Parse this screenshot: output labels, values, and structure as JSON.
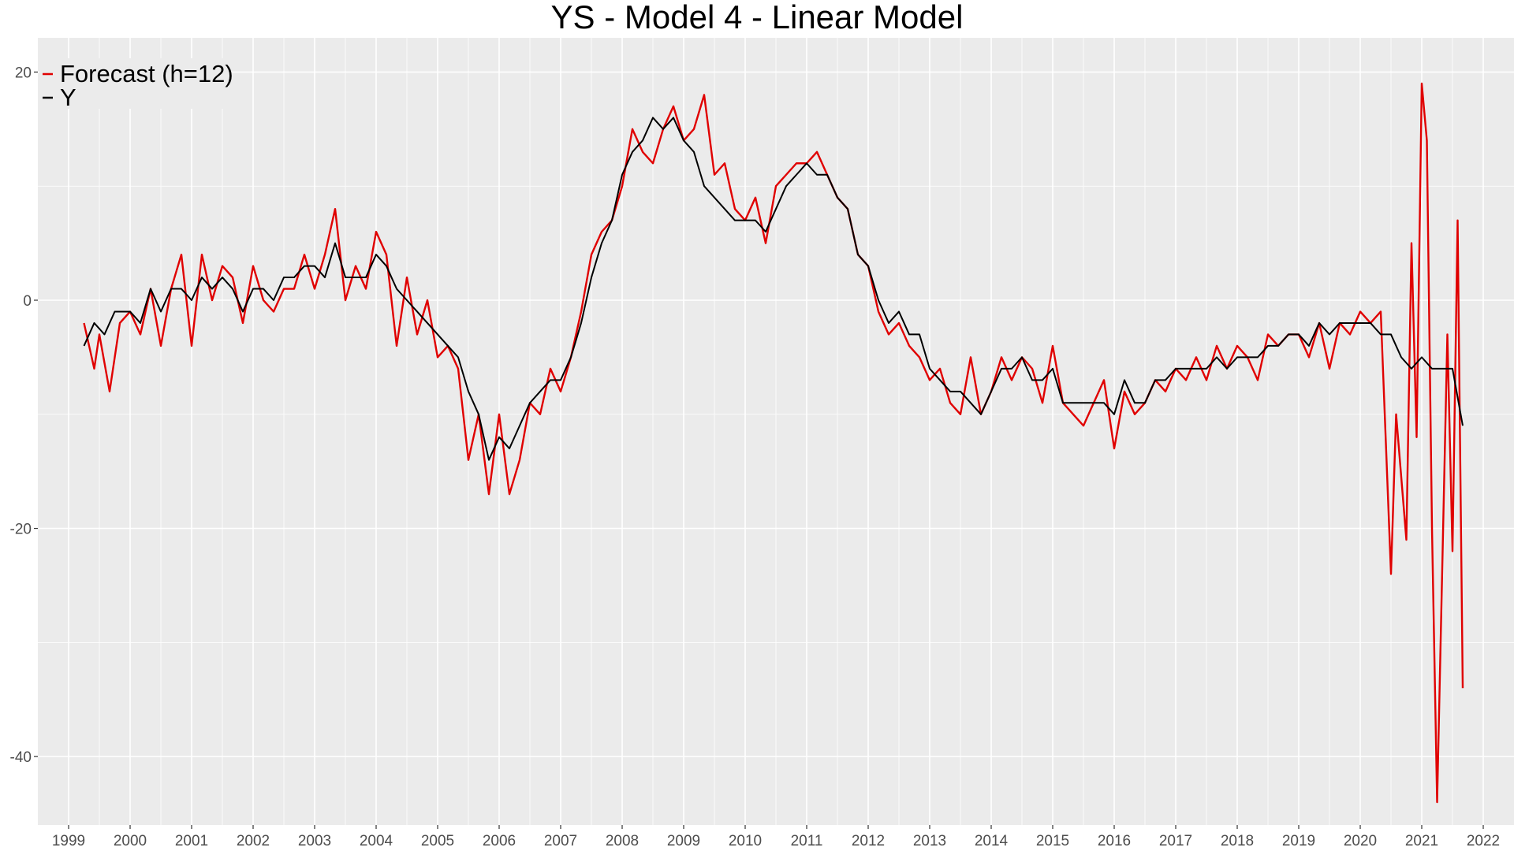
{
  "chart_data": {
    "type": "line",
    "title": "YS - Model 4 - Linear Model",
    "xlabel": "",
    "ylabel": "",
    "x_start": "1999-04",
    "x_end": "2021-06",
    "xlim": [
      "1998-07",
      "2022-07"
    ],
    "ylim": [
      -46,
      23
    ],
    "x_ticks": [
      "1999",
      "2000",
      "2001",
      "2002",
      "2003",
      "2004",
      "2005",
      "2006",
      "2007",
      "2008",
      "2009",
      "2010",
      "2011",
      "2012",
      "2013",
      "2014",
      "2015",
      "2016",
      "2017",
      "2018",
      "2019",
      "2020",
      "2021",
      "2022"
    ],
    "y_ticks": [
      20,
      0,
      -20,
      -40
    ],
    "y_tick_labels": [
      "20",
      "0",
      "-20",
      "-40"
    ],
    "grid": true,
    "legend_position": "top-left",
    "background": "#EBEBEB",
    "gridline_color": "#FFFFFF",
    "series": [
      {
        "name": "Forecast (h=12)",
        "color": "#E00000",
        "anchors": [
          [
            "1999-04",
            -2
          ],
          [
            "1999-06",
            -6
          ],
          [
            "1999-07",
            -3
          ],
          [
            "1999-09",
            -8
          ],
          [
            "1999-11",
            -2
          ],
          [
            "2000-01",
            -1
          ],
          [
            "2000-03",
            -3
          ],
          [
            "2000-05",
            1
          ],
          [
            "2000-07",
            -4
          ],
          [
            "2000-09",
            1
          ],
          [
            "2000-11",
            4
          ],
          [
            "2001-01",
            -4
          ],
          [
            "2001-03",
            4
          ],
          [
            "2001-05",
            0
          ],
          [
            "2001-07",
            3
          ],
          [
            "2001-09",
            2
          ],
          [
            "2001-11",
            -2
          ],
          [
            "2002-01",
            3
          ],
          [
            "2002-03",
            0
          ],
          [
            "2002-05",
            -1
          ],
          [
            "2002-07",
            1
          ],
          [
            "2002-09",
            1
          ],
          [
            "2002-11",
            4
          ],
          [
            "2003-01",
            1
          ],
          [
            "2003-03",
            4
          ],
          [
            "2003-05",
            8
          ],
          [
            "2003-07",
            0
          ],
          [
            "2003-09",
            3
          ],
          [
            "2003-11",
            1
          ],
          [
            "2004-01",
            6
          ],
          [
            "2004-03",
            4
          ],
          [
            "2004-05",
            -4
          ],
          [
            "2004-07",
            2
          ],
          [
            "2004-09",
            -3
          ],
          [
            "2004-11",
            0
          ],
          [
            "2005-01",
            -5
          ],
          [
            "2005-03",
            -4
          ],
          [
            "2005-05",
            -6
          ],
          [
            "2005-07",
            -14
          ],
          [
            "2005-09",
            -10
          ],
          [
            "2005-11",
            -17
          ],
          [
            "2006-01",
            -10
          ],
          [
            "2006-03",
            -17
          ],
          [
            "2006-05",
            -14
          ],
          [
            "2006-07",
            -9
          ],
          [
            "2006-09",
            -10
          ],
          [
            "2006-11",
            -6
          ],
          [
            "2007-01",
            -8
          ],
          [
            "2007-03",
            -5
          ],
          [
            "2007-05",
            -1
          ],
          [
            "2007-07",
            4
          ],
          [
            "2007-09",
            6
          ],
          [
            "2007-11",
            7
          ],
          [
            "2008-01",
            10
          ],
          [
            "2008-03",
            15
          ],
          [
            "2008-05",
            13
          ],
          [
            "2008-07",
            12
          ],
          [
            "2008-09",
            15
          ],
          [
            "2008-11",
            17
          ],
          [
            "2009-01",
            14
          ],
          [
            "2009-03",
            15
          ],
          [
            "2009-05",
            18
          ],
          [
            "2009-07",
            11
          ],
          [
            "2009-09",
            12
          ],
          [
            "2009-11",
            8
          ],
          [
            "2010-01",
            7
          ],
          [
            "2010-03",
            9
          ],
          [
            "2010-05",
            5
          ],
          [
            "2010-07",
            10
          ],
          [
            "2010-09",
            11
          ],
          [
            "2010-11",
            12
          ],
          [
            "2011-01",
            12
          ],
          [
            "2011-03",
            13
          ],
          [
            "2011-05",
            11
          ],
          [
            "2011-07",
            9
          ],
          [
            "2011-09",
            8
          ],
          [
            "2011-11",
            4
          ],
          [
            "2012-01",
            3
          ],
          [
            "2012-03",
            -1
          ],
          [
            "2012-05",
            -3
          ],
          [
            "2012-07",
            -2
          ],
          [
            "2012-09",
            -4
          ],
          [
            "2012-11",
            -5
          ],
          [
            "2013-01",
            -7
          ],
          [
            "2013-03",
            -6
          ],
          [
            "2013-05",
            -9
          ],
          [
            "2013-07",
            -10
          ],
          [
            "2013-09",
            -5
          ],
          [
            "2013-11",
            -10
          ],
          [
            "2014-01",
            -8
          ],
          [
            "2014-03",
            -5
          ],
          [
            "2014-05",
            -7
          ],
          [
            "2014-07",
            -5
          ],
          [
            "2014-09",
            -6
          ],
          [
            "2014-11",
            -9
          ],
          [
            "2015-01",
            -4
          ],
          [
            "2015-03",
            -9
          ],
          [
            "2015-05",
            -10
          ],
          [
            "2015-07",
            -11
          ],
          [
            "2015-09",
            -9
          ],
          [
            "2015-11",
            -7
          ],
          [
            "2016-01",
            -13
          ],
          [
            "2016-03",
            -8
          ],
          [
            "2016-05",
            -10
          ],
          [
            "2016-07",
            -9
          ],
          [
            "2016-09",
            -7
          ],
          [
            "2016-11",
            -8
          ],
          [
            "2017-01",
            -6
          ],
          [
            "2017-03",
            -7
          ],
          [
            "2017-05",
            -5
          ],
          [
            "2017-07",
            -7
          ],
          [
            "2017-09",
            -4
          ],
          [
            "2017-11",
            -6
          ],
          [
            "2018-01",
            -4
          ],
          [
            "2018-03",
            -5
          ],
          [
            "2018-05",
            -7
          ],
          [
            "2018-07",
            -3
          ],
          [
            "2018-09",
            -4
          ],
          [
            "2018-11",
            -3
          ],
          [
            "2019-01",
            -3
          ],
          [
            "2019-03",
            -5
          ],
          [
            "2019-05",
            -2
          ],
          [
            "2019-07",
            -6
          ],
          [
            "2019-09",
            -2
          ],
          [
            "2019-11",
            -3
          ],
          [
            "2020-01",
            -1
          ],
          [
            "2020-03",
            -2
          ],
          [
            "2020-05",
            -1
          ],
          [
            "2020-07",
            -24
          ],
          [
            "2020-08",
            -10
          ],
          [
            "2020-10",
            -21
          ],
          [
            "2020-11",
            5
          ],
          [
            "2020-12",
            -12
          ],
          [
            "2021-01",
            19
          ],
          [
            "2021-02",
            14
          ],
          [
            "2021-03",
            -20
          ],
          [
            "2021-04",
            -44
          ],
          [
            "2021-06",
            -3
          ],
          [
            "2021-07",
            -22
          ],
          [
            "2021-08",
            7
          ],
          [
            "2021-09",
            -34
          ]
        ]
      },
      {
        "name": "Y",
        "color": "#000000",
        "anchors": [
          [
            "1999-04",
            -4
          ],
          [
            "1999-06",
            -2
          ],
          [
            "1999-08",
            -3
          ],
          [
            "1999-10",
            -1
          ],
          [
            "2000-01",
            -1
          ],
          [
            "2000-03",
            -2
          ],
          [
            "2000-05",
            1
          ],
          [
            "2000-07",
            -1
          ],
          [
            "2000-09",
            1
          ],
          [
            "2000-11",
            1
          ],
          [
            "2001-01",
            0
          ],
          [
            "2001-03",
            2
          ],
          [
            "2001-05",
            1
          ],
          [
            "2001-07",
            2
          ],
          [
            "2001-09",
            1
          ],
          [
            "2001-11",
            -1
          ],
          [
            "2002-01",
            1
          ],
          [
            "2002-03",
            1
          ],
          [
            "2002-05",
            0
          ],
          [
            "2002-07",
            2
          ],
          [
            "2002-09",
            2
          ],
          [
            "2002-11",
            3
          ],
          [
            "2003-01",
            3
          ],
          [
            "2003-03",
            2
          ],
          [
            "2003-05",
            5
          ],
          [
            "2003-07",
            2
          ],
          [
            "2003-09",
            2
          ],
          [
            "2003-11",
            2
          ],
          [
            "2004-01",
            4
          ],
          [
            "2004-03",
            3
          ],
          [
            "2004-05",
            1
          ],
          [
            "2004-07",
            0
          ],
          [
            "2004-09",
            -1
          ],
          [
            "2004-11",
            -2
          ],
          [
            "2005-01",
            -3
          ],
          [
            "2005-03",
            -4
          ],
          [
            "2005-05",
            -5
          ],
          [
            "2005-07",
            -8
          ],
          [
            "2005-09",
            -10
          ],
          [
            "2005-11",
            -14
          ],
          [
            "2006-01",
            -12
          ],
          [
            "2006-03",
            -13
          ],
          [
            "2006-05",
            -11
          ],
          [
            "2006-07",
            -9
          ],
          [
            "2006-09",
            -8
          ],
          [
            "2006-11",
            -7
          ],
          [
            "2007-01",
            -7
          ],
          [
            "2007-03",
            -5
          ],
          [
            "2007-05",
            -2
          ],
          [
            "2007-07",
            2
          ],
          [
            "2007-09",
            5
          ],
          [
            "2007-11",
            7
          ],
          [
            "2008-01",
            11
          ],
          [
            "2008-03",
            13
          ],
          [
            "2008-05",
            14
          ],
          [
            "2008-07",
            16
          ],
          [
            "2008-09",
            15
          ],
          [
            "2008-11",
            16
          ],
          [
            "2009-01",
            14
          ],
          [
            "2009-03",
            13
          ],
          [
            "2009-05",
            10
          ],
          [
            "2009-07",
            9
          ],
          [
            "2009-09",
            8
          ],
          [
            "2009-11",
            7
          ],
          [
            "2010-01",
            7
          ],
          [
            "2010-03",
            7
          ],
          [
            "2010-05",
            6
          ],
          [
            "2010-07",
            8
          ],
          [
            "2010-09",
            10
          ],
          [
            "2010-11",
            11
          ],
          [
            "2011-01",
            12
          ],
          [
            "2011-03",
            11
          ],
          [
            "2011-05",
            11
          ],
          [
            "2011-07",
            9
          ],
          [
            "2011-09",
            8
          ],
          [
            "2011-11",
            4
          ],
          [
            "2012-01",
            3
          ],
          [
            "2012-03",
            0
          ],
          [
            "2012-05",
            -2
          ],
          [
            "2012-07",
            -1
          ],
          [
            "2012-09",
            -3
          ],
          [
            "2012-11",
            -3
          ],
          [
            "2013-01",
            -6
          ],
          [
            "2013-03",
            -7
          ],
          [
            "2013-05",
            -8
          ],
          [
            "2013-07",
            -8
          ],
          [
            "2013-09",
            -9
          ],
          [
            "2013-11",
            -10
          ],
          [
            "2014-01",
            -8
          ],
          [
            "2014-03",
            -6
          ],
          [
            "2014-05",
            -6
          ],
          [
            "2014-07",
            -5
          ],
          [
            "2014-09",
            -7
          ],
          [
            "2014-11",
            -7
          ],
          [
            "2015-01",
            -6
          ],
          [
            "2015-03",
            -9
          ],
          [
            "2015-05",
            -9
          ],
          [
            "2015-07",
            -9
          ],
          [
            "2015-09",
            -9
          ],
          [
            "2015-11",
            -9
          ],
          [
            "2016-01",
            -10
          ],
          [
            "2016-03",
            -7
          ],
          [
            "2016-05",
            -9
          ],
          [
            "2016-07",
            -9
          ],
          [
            "2016-09",
            -7
          ],
          [
            "2016-11",
            -7
          ],
          [
            "2017-01",
            -6
          ],
          [
            "2017-03",
            -6
          ],
          [
            "2017-05",
            -6
          ],
          [
            "2017-07",
            -6
          ],
          [
            "2017-09",
            -5
          ],
          [
            "2017-11",
            -6
          ],
          [
            "2018-01",
            -5
          ],
          [
            "2018-03",
            -5
          ],
          [
            "2018-05",
            -5
          ],
          [
            "2018-07",
            -4
          ],
          [
            "2018-09",
            -4
          ],
          [
            "2018-11",
            -3
          ],
          [
            "2019-01",
            -3
          ],
          [
            "2019-03",
            -4
          ],
          [
            "2019-05",
            -2
          ],
          [
            "2019-07",
            -3
          ],
          [
            "2019-09",
            -2
          ],
          [
            "2019-11",
            -2
          ],
          [
            "2020-01",
            -2
          ],
          [
            "2020-03",
            -2
          ],
          [
            "2020-05",
            -3
          ],
          [
            "2020-07",
            -3
          ],
          [
            "2020-09",
            -5
          ],
          [
            "2020-11",
            -6
          ],
          [
            "2021-01",
            -5
          ],
          [
            "2021-03",
            -6
          ],
          [
            "2021-05",
            -6
          ],
          [
            "2021-07",
            -6
          ],
          [
            "2021-09",
            -11
          ]
        ]
      }
    ]
  }
}
